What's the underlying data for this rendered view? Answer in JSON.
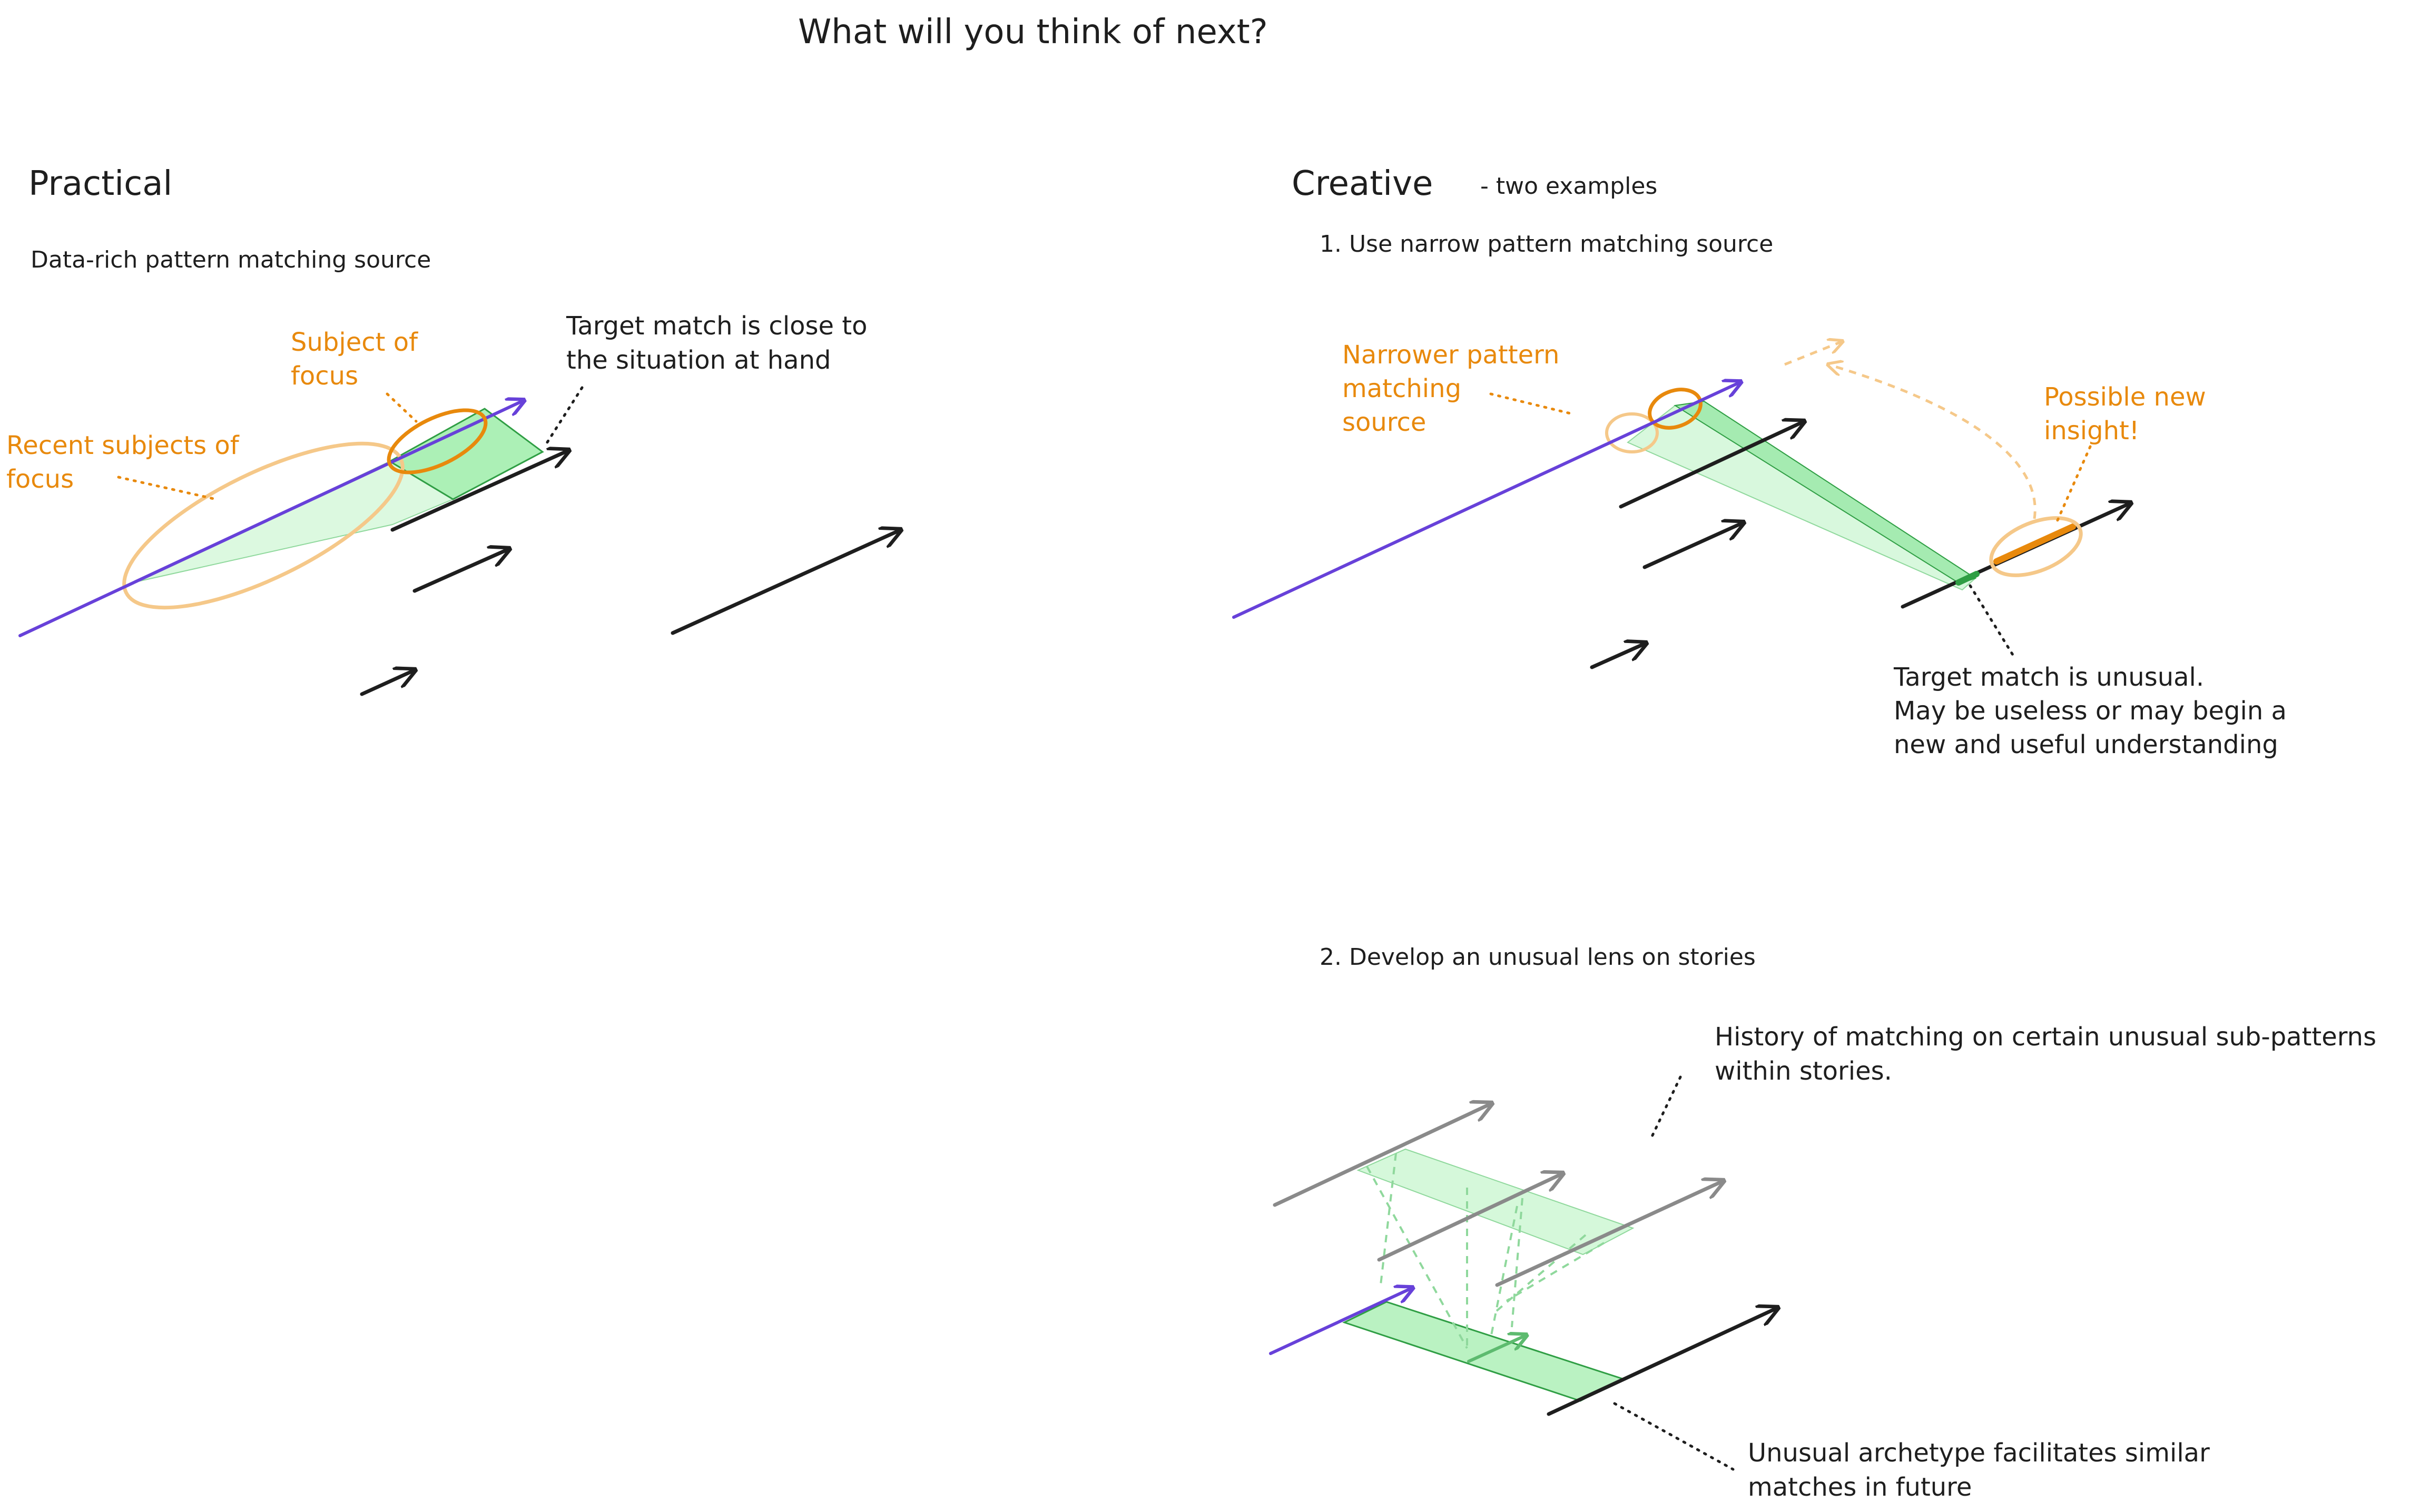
{
  "title": "What will you think of next?",
  "practical": {
    "heading": "Practical",
    "subtitle": "Data-rich pattern matching source",
    "subject_of_focus": [
      "Subject of",
      "focus"
    ],
    "recent_subjects": [
      "Recent subjects of",
      "focus"
    ],
    "target_match": [
      "Target match is close to",
      "the situation at hand"
    ]
  },
  "creative": {
    "heading": "Creative",
    "heading_note": "- two examples",
    "example1": "1. Use narrow pattern matching source",
    "narrower_source": [
      "Narrower pattern",
      "matching",
      "source"
    ],
    "possible_insight": [
      "Possible new",
      "insight!"
    ],
    "target_unusual": [
      "Target match is unusual.",
      "May be useless or may begin a",
      "new and useful understanding"
    ],
    "example2": "2. Develop an unusual lens on stories",
    "history": [
      "History of matching on certain unusual sub-patterns",
      "within stories."
    ],
    "archetype": [
      "Unusual archetype facilitates similar",
      "matches in future"
    ]
  },
  "colors": {
    "ink": "#1e1e1e",
    "annotation_orange": "#e8890c",
    "ellipse_light_orange": "#f5c889",
    "focus_purple": "#6741d9",
    "match_green": "#2f9e44",
    "match_green_fill": "#b2f2bb",
    "past_story_gray": "#8a8a8a"
  }
}
